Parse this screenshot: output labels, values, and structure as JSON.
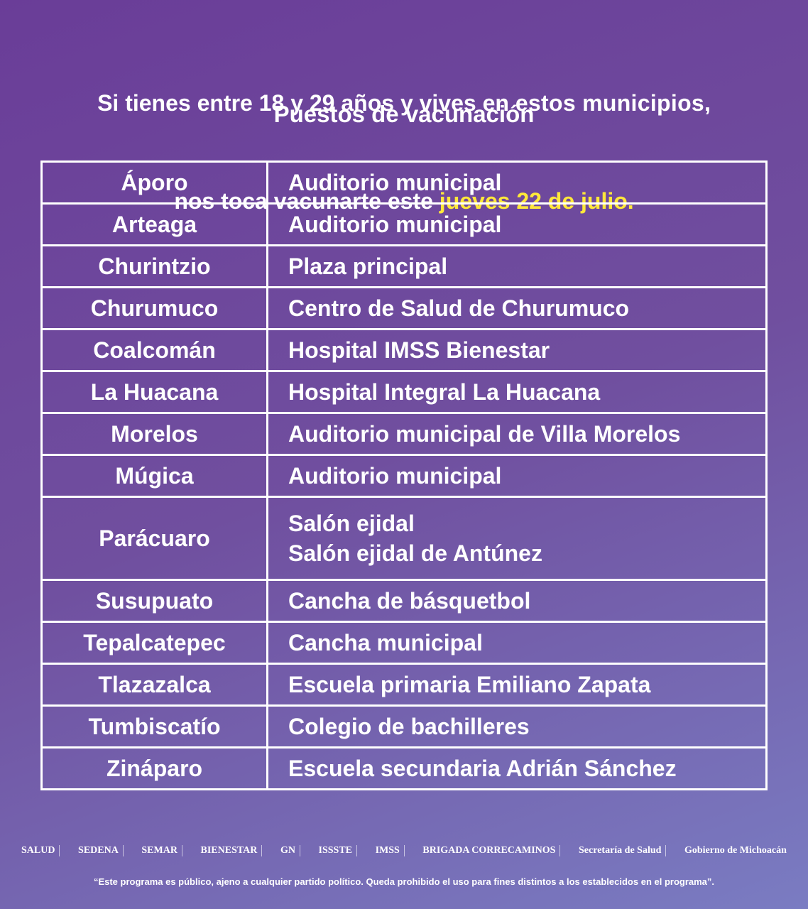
{
  "header": {
    "line1": [
      "Si tienes entre 18 y 29 años y vives en ",
      "estos municipios",
      ","
    ],
    "line2": [
      "nos toca vacunarte este ",
      "jueves 22 de julio."
    ]
  },
  "subtitle": "Puestos de vacunación",
  "table": {
    "rows": [
      {
        "municipio": "Áporo",
        "puestos": [
          "Auditorio municipal"
        ]
      },
      {
        "municipio": "Arteaga",
        "puestos": [
          "Auditorio municipal"
        ]
      },
      {
        "municipio": "Churintzio",
        "puestos": [
          "Plaza principal"
        ]
      },
      {
        "municipio": "Churumuco",
        "puestos": [
          "Centro de Salud de Churumuco"
        ]
      },
      {
        "municipio": "Coalcomán",
        "puestos": [
          "Hospital IMSS Bienestar"
        ]
      },
      {
        "municipio": "La Huacana",
        "puestos": [
          "Hospital Integral La Huacana"
        ]
      },
      {
        "municipio": "Morelos",
        "puestos": [
          "Auditorio municipal de Villa Morelos"
        ]
      },
      {
        "municipio": "Múgica",
        "puestos": [
          "Auditorio municipal"
        ]
      },
      {
        "municipio": "Parácuaro",
        "puestos": [
          "Salón ejidal",
          "Salón ejidal de Antúnez"
        ]
      },
      {
        "municipio": "Susupuato",
        "puestos": [
          "Cancha de básquetbol"
        ]
      },
      {
        "municipio": "Tepalcatepec",
        "puestos": [
          "Cancha municipal"
        ]
      },
      {
        "municipio": "Tlazazalca",
        "puestos": [
          "Escuela primaria Emiliano Zapata"
        ]
      },
      {
        "municipio": "Tumbiscatío",
        "puestos": [
          "Colegio de bachilleres"
        ]
      },
      {
        "municipio": "Zináparo",
        "puestos": [
          "Escuela secundaria Adrián Sánchez"
        ]
      }
    ]
  },
  "footer": {
    "logos": [
      "SALUD",
      "SEDENA",
      "SEMAR",
      "BIENESTAR",
      "GN",
      "ISSSTE",
      "IMSS",
      "BRIGADA CORRECAMINOS",
      "Secretaría de Salud",
      "Gobierno de Michoacán"
    ],
    "disclaimer": "“Este programa es público, ajeno a cualquier partido político. Queda prohibido el uso para fines distintos a los establecidos en el programa”."
  }
}
